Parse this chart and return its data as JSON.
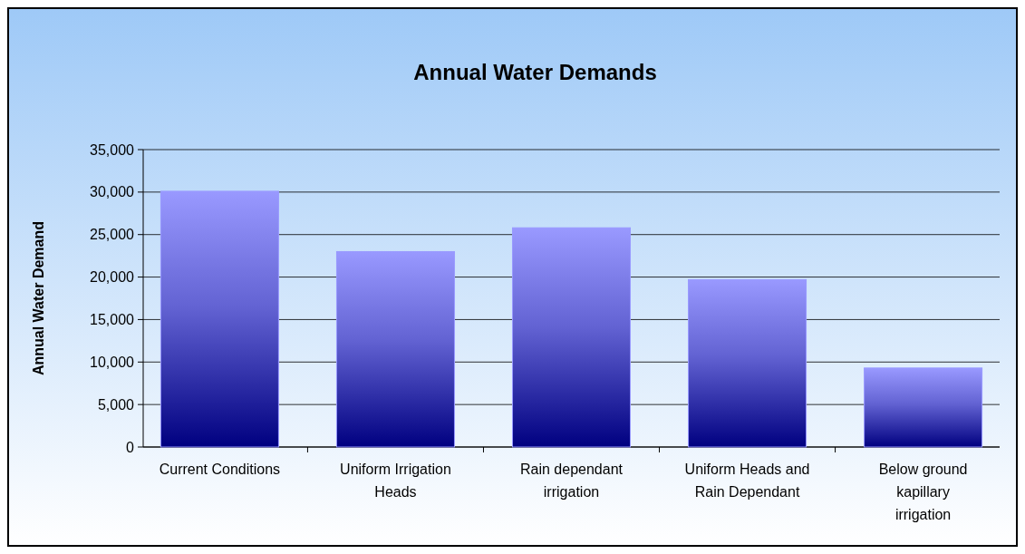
{
  "chart_data": {
    "type": "bar",
    "title": "Annual Water Demands",
    "ylabel": "Annual Water Demand",
    "categories": [
      "Current Conditions",
      "Uniform Irrigation Heads",
      "Rain dependant irrigation",
      "Uniform Heads and Rain Dependant",
      "Below ground kapillary irrigation"
    ],
    "values": [
      30100,
      23000,
      25800,
      19700,
      9300
    ],
    "color": "#9999ff",
    "ylim": [
      0,
      35000
    ],
    "yticks": [
      {
        "value": 0,
        "label": "0"
      },
      {
        "value": 5000,
        "label": "5,000"
      },
      {
        "value": 10000,
        "label": "10,000"
      },
      {
        "value": 15000,
        "label": "15,000"
      },
      {
        "value": 20000,
        "label": "20,000"
      },
      {
        "value": 25000,
        "label": "25,000"
      },
      {
        "value": 30000,
        "label": "30,000"
      },
      {
        "value": 35000,
        "label": "35,000"
      }
    ],
    "grid": "y"
  }
}
